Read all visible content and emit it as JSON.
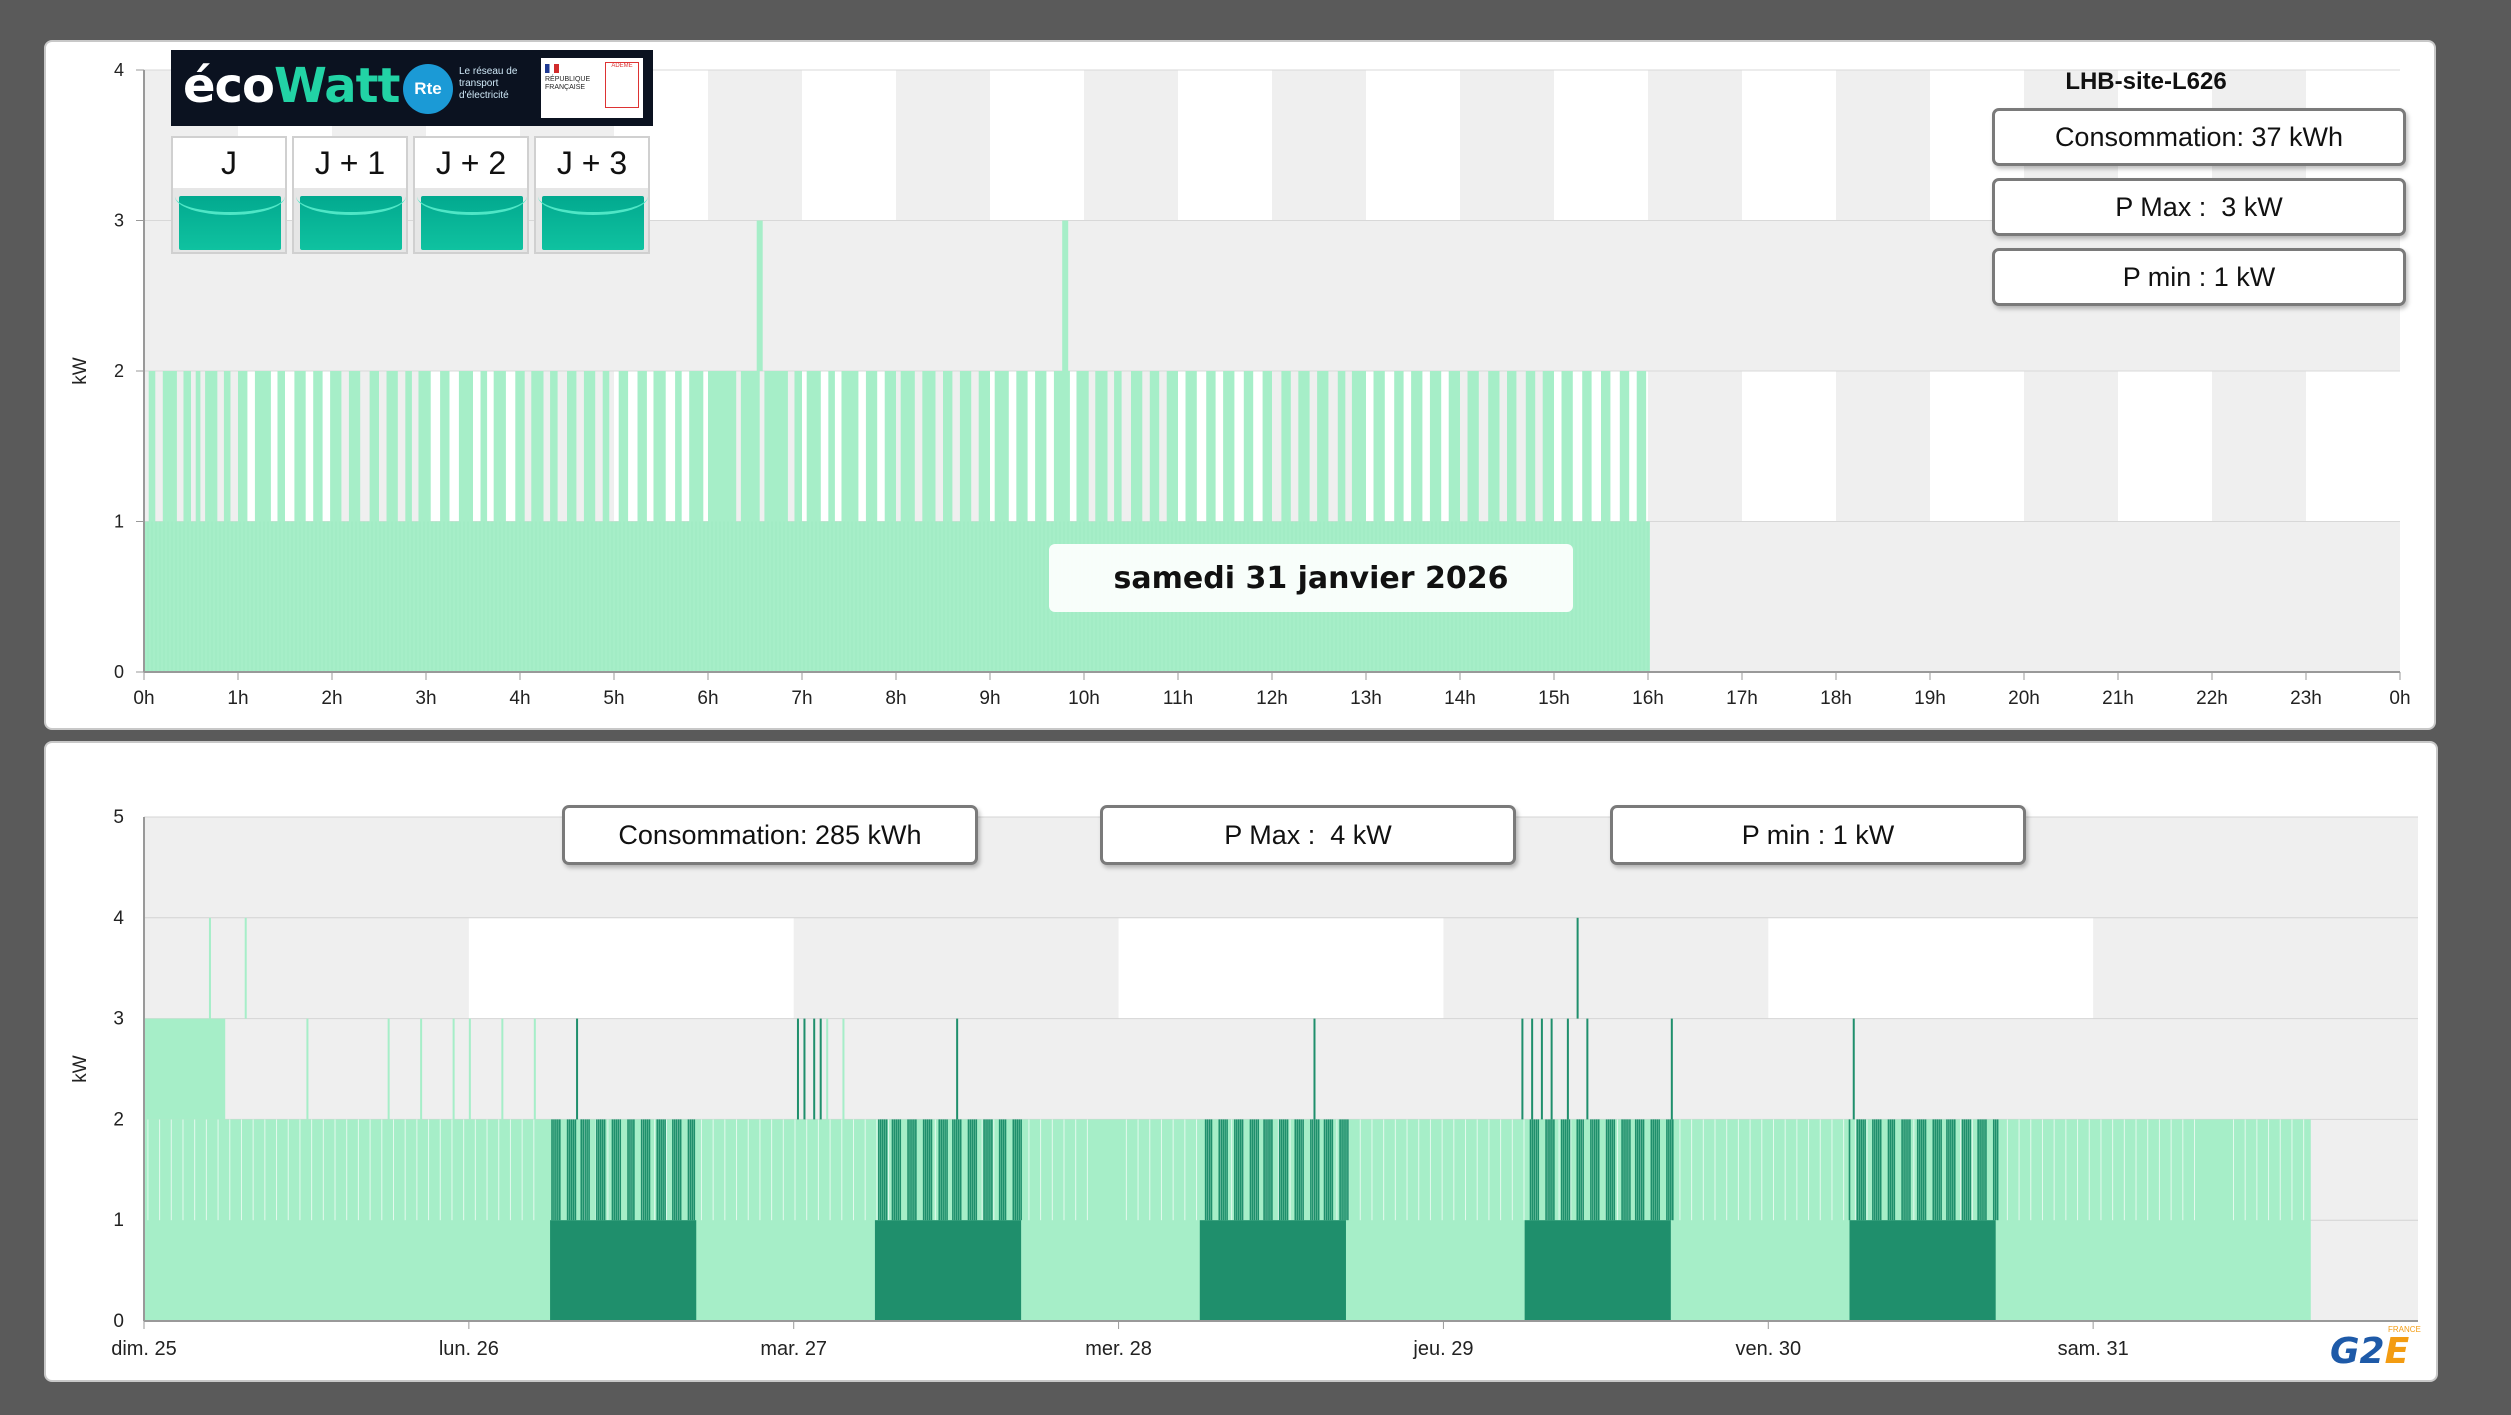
{
  "top_panel": {
    "site_title": "LHB-site-L626",
    "consumption": "Consommation: 37 kWh",
    "pmax": "P Max :  3 kW",
    "pmin": "P min : 1 kW",
    "date_label": "samedi 31 janvier 2026",
    "ecowatt": {
      "logo_prefix": "éco",
      "logo_suffix": "Watt",
      "rte": "Rte",
      "rte_tagline": "Le réseau de transport d'électricité",
      "republique": "RÉPUBLIQUE FRANÇAISE",
      "ademe": "ADEME",
      "days": [
        "J",
        "J + 1",
        "J + 2",
        "J + 3"
      ],
      "signal_colors": [
        "#02a98f",
        "#02a98f",
        "#02a98f",
        "#02a98f"
      ]
    }
  },
  "bottom_panel": {
    "consumption": "Consommation: 285 kWh",
    "pmax": "P Max :  4 kW",
    "pmin": "P min : 1 kW"
  },
  "logo": {
    "text_g2": "G2",
    "text_e": "E",
    "country": "FRANCE"
  },
  "colors": {
    "light_green": "#a6eec8",
    "dark_green": "#1f8f6c",
    "band_gray": "#efefef"
  },
  "chart_data": [
    {
      "type": "bar",
      "ylabel": "kW",
      "ylim": [
        0,
        4
      ],
      "yticks": [
        "0",
        "1",
        "2",
        "3",
        "4"
      ],
      "xticks": [
        "0h",
        "1h",
        "2h",
        "3h",
        "4h",
        "5h",
        "6h",
        "7h",
        "8h",
        "9h",
        "10h",
        "11h",
        "12h",
        "13h",
        "14h",
        "15h",
        "16h",
        "17h",
        "18h",
        "19h",
        "20h",
        "21h",
        "22h",
        "23h",
        "0h"
      ],
      "x_range_hours": [
        0,
        24
      ],
      "data_end_hour": 16.02,
      "base_kw": 1,
      "spike_2kw_segments": [
        [
          0.05,
          0.12
        ],
        [
          0.2,
          0.35
        ],
        [
          0.42,
          0.5
        ],
        [
          0.55,
          0.6
        ],
        [
          0.65,
          0.78
        ],
        [
          0.85,
          0.92
        ],
        [
          1.0,
          1.1
        ],
        [
          1.18,
          1.35
        ],
        [
          1.42,
          1.5
        ],
        [
          1.6,
          1.72
        ],
        [
          1.8,
          1.9
        ],
        [
          1.98,
          2.1
        ],
        [
          2.18,
          2.3
        ],
        [
          2.4,
          2.5
        ],
        [
          2.58,
          2.7
        ],
        [
          2.78,
          2.85
        ],
        [
          2.92,
          3.05
        ],
        [
          3.15,
          3.25
        ],
        [
          3.35,
          3.5
        ],
        [
          3.58,
          3.65
        ],
        [
          3.72,
          3.85
        ],
        [
          3.95,
          4.05
        ],
        [
          4.12,
          4.25
        ],
        [
          4.32,
          4.4
        ],
        [
          4.5,
          4.6
        ],
        [
          4.68,
          4.8
        ],
        [
          4.88,
          4.95
        ],
        [
          5.05,
          5.15
        ],
        [
          5.25,
          5.35
        ],
        [
          5.42,
          5.55
        ],
        [
          5.65,
          5.72
        ],
        [
          5.8,
          5.95
        ],
        [
          6.0,
          6.3
        ],
        [
          6.35,
          6.55
        ],
        [
          6.6,
          6.85
        ],
        [
          6.92,
          7.0
        ],
        [
          7.05,
          7.2
        ],
        [
          7.28,
          7.35
        ],
        [
          7.42,
          7.6
        ],
        [
          7.68,
          7.8
        ],
        [
          7.88,
          8.0
        ],
        [
          8.05,
          8.2
        ],
        [
          8.28,
          8.42
        ],
        [
          8.5,
          8.6
        ],
        [
          8.68,
          8.8
        ],
        [
          8.88,
          9.0
        ],
        [
          9.05,
          9.2
        ],
        [
          9.28,
          9.4
        ],
        [
          9.48,
          9.6
        ],
        [
          9.68,
          9.85
        ],
        [
          9.92,
          10.05
        ],
        [
          10.12,
          10.25
        ],
        [
          10.32,
          10.4
        ],
        [
          10.5,
          10.62
        ],
        [
          10.7,
          10.8
        ],
        [
          10.88,
          11.0
        ],
        [
          11.08,
          11.2
        ],
        [
          11.3,
          11.4
        ],
        [
          11.48,
          11.6
        ],
        [
          11.7,
          11.8
        ],
        [
          11.9,
          12.0
        ],
        [
          12.1,
          12.2
        ],
        [
          12.28,
          12.4
        ],
        [
          12.48,
          12.6
        ],
        [
          12.7,
          12.78
        ],
        [
          12.85,
          13.0
        ],
        [
          13.08,
          13.2
        ],
        [
          13.3,
          13.4
        ],
        [
          13.48,
          13.6
        ],
        [
          13.68,
          13.8
        ],
        [
          13.88,
          14.0
        ],
        [
          14.08,
          14.2
        ],
        [
          14.3,
          14.42
        ],
        [
          14.5,
          14.6
        ],
        [
          14.7,
          14.8
        ],
        [
          14.88,
          15.0
        ],
        [
          15.08,
          15.2
        ],
        [
          15.3,
          15.4
        ],
        [
          15.5,
          15.6
        ],
        [
          15.7,
          15.8
        ],
        [
          15.88,
          15.98
        ]
      ],
      "spike_3kw_hours": [
        6.55,
        9.8
      ]
    },
    {
      "type": "bar",
      "ylabel": "kW",
      "ylim": [
        0,
        5
      ],
      "yticks": [
        "0",
        "1",
        "2",
        "3",
        "4",
        "5"
      ],
      "xticks": [
        "dim. 25",
        "lun. 26",
        "mar. 27",
        "mer. 28",
        "jeu. 29",
        "ven. 30",
        "sam. 31"
      ],
      "x_range_days": [
        0,
        7
      ],
      "data_end_day": 6.67,
      "dark_periods": [
        [
          1.25,
          1.7
        ],
        [
          2.25,
          2.7
        ],
        [
          3.25,
          3.7
        ],
        [
          4.25,
          4.7
        ],
        [
          5.25,
          5.7
        ]
      ],
      "spike_4kw_days": [
        0.2,
        0.31,
        4.41
      ],
      "spike_3kw_days": [
        1.33,
        2.01,
        2.03,
        2.06,
        2.08,
        2.5,
        3.6,
        4.24,
        4.27,
        4.3,
        4.33,
        4.38,
        4.44,
        4.7,
        5.26
      ]
    }
  ]
}
